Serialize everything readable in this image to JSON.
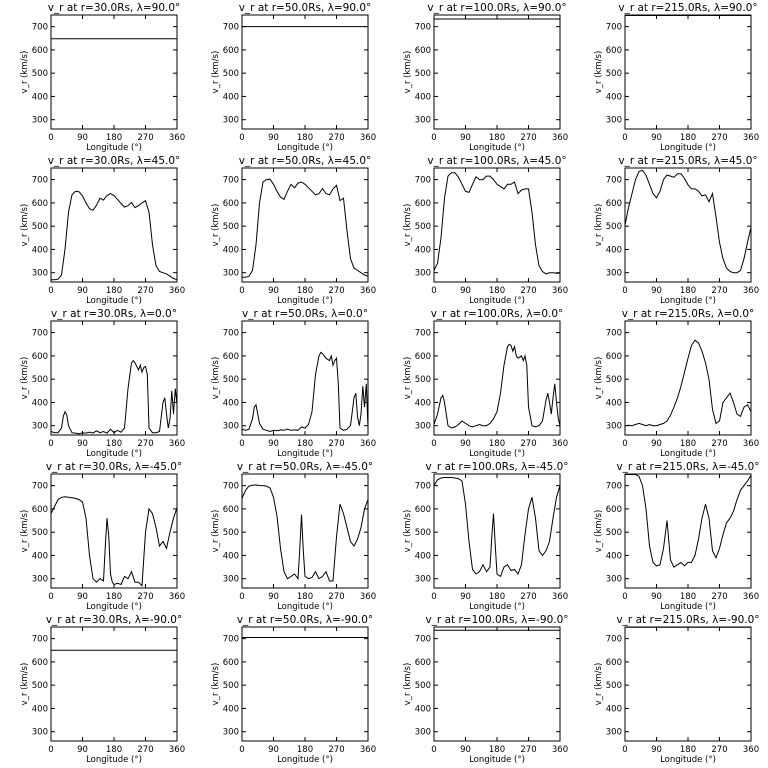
{
  "figure": {
    "ylabel": "v_r (km/s)",
    "xlabel": "Longitude (°)",
    "xticks": [
      0,
      90,
      180,
      270,
      360
    ],
    "yticks": [
      300,
      400,
      500,
      600,
      700
    ],
    "xlim": [
      0,
      360
    ],
    "ylim": [
      260,
      750
    ]
  },
  "chart_data": [
    {
      "type": "line",
      "title": "v_r at r=30.0Rs, λ=90.0°",
      "xlabel": "Longitude (°)",
      "ylabel": "v_r (km/s)",
      "xlim": [
        0,
        360
      ],
      "ylim": [
        260,
        750
      ],
      "x": [
        0,
        360
      ],
      "y": [
        648,
        648
      ]
    },
    {
      "type": "line",
      "title": "v_r at r=50.0Rs, λ=90.0°",
      "xlabel": "Longitude (°)",
      "ylabel": "v_r (km/s)",
      "xlim": [
        0,
        360
      ],
      "ylim": [
        260,
        750
      ],
      "x": [
        0,
        360
      ],
      "y": [
        700,
        700
      ]
    },
    {
      "type": "line",
      "title": "v_r at r=100.0Rs, λ=90.0°",
      "xlabel": "Longitude (°)",
      "ylabel": "v_r (km/s)",
      "xlim": [
        0,
        360
      ],
      "ylim": [
        260,
        750
      ],
      "x": [
        0,
        360
      ],
      "y": [
        733,
        733
      ]
    },
    {
      "type": "line",
      "title": "v_r at r=215.0Rs, λ=90.0°",
      "xlabel": "Longitude (°)",
      "ylabel": "v_r (km/s)",
      "xlim": [
        0,
        360
      ],
      "ylim": [
        260,
        750
      ],
      "x": [
        0,
        360
      ],
      "y": [
        748,
        748
      ]
    },
    {
      "type": "line",
      "title": "v_r at r=30.0Rs, λ=45.0°",
      "xlabel": "Longitude (°)",
      "ylabel": "v_r (km/s)",
      "xlim": [
        0,
        360
      ],
      "ylim": [
        260,
        750
      ],
      "x": [
        0,
        10,
        20,
        30,
        40,
        50,
        60,
        70,
        80,
        90,
        100,
        110,
        120,
        130,
        140,
        150,
        160,
        170,
        180,
        190,
        200,
        210,
        220,
        230,
        240,
        250,
        260,
        270,
        280,
        290,
        300,
        310,
        320,
        330,
        340,
        350,
        360
      ],
      "y": [
        270,
        270,
        272,
        290,
        400,
        560,
        635,
        650,
        648,
        630,
        600,
        575,
        568,
        590,
        620,
        612,
        632,
        640,
        632,
        615,
        598,
        582,
        588,
        602,
        580,
        588,
        600,
        610,
        560,
        420,
        330,
        305,
        300,
        295,
        285,
        275,
        270
      ]
    },
    {
      "type": "line",
      "title": "v_r at r=50.0Rs, λ=45.0°",
      "xlabel": "Longitude (°)",
      "ylabel": "v_r (km/s)",
      "xlim": [
        0,
        360
      ],
      "ylim": [
        260,
        750
      ],
      "x": [
        0,
        10,
        20,
        30,
        40,
        50,
        60,
        70,
        80,
        90,
        100,
        110,
        120,
        130,
        140,
        150,
        160,
        170,
        180,
        190,
        200,
        210,
        220,
        230,
        240,
        250,
        260,
        270,
        280,
        290,
        300,
        310,
        320,
        330,
        340,
        350,
        360
      ],
      "y": [
        280,
        280,
        285,
        310,
        420,
        600,
        690,
        700,
        702,
        680,
        650,
        625,
        615,
        650,
        680,
        665,
        685,
        690,
        680,
        665,
        650,
        635,
        640,
        662,
        640,
        635,
        660,
        675,
        610,
        620,
        480,
        360,
        320,
        310,
        300,
        290,
        285
      ]
    },
    {
      "type": "line",
      "title": "v_r at r=100.0Rs, λ=45.0°",
      "xlabel": "Longitude (°)",
      "ylabel": "v_r (km/s)",
      "xlim": [
        0,
        360
      ],
      "ylim": [
        260,
        750
      ],
      "x": [
        0,
        10,
        20,
        30,
        40,
        50,
        60,
        70,
        80,
        90,
        100,
        110,
        120,
        130,
        140,
        150,
        160,
        170,
        180,
        190,
        200,
        210,
        220,
        230,
        240,
        250,
        260,
        270,
        280,
        290,
        300,
        310,
        320,
        330,
        340,
        350,
        360
      ],
      "y": [
        310,
        340,
        450,
        620,
        715,
        730,
        730,
        710,
        680,
        650,
        645,
        680,
        712,
        700,
        700,
        715,
        715,
        700,
        680,
        670,
        660,
        680,
        680,
        690,
        640,
        655,
        660,
        660,
        560,
        420,
        330,
        305,
        295,
        300,
        300,
        298,
        298
      ]
    },
    {
      "type": "line",
      "title": "v_r at r=215.0Rs, λ=45.0°",
      "xlabel": "Longitude (°)",
      "ylabel": "v_r (km/s)",
      "xlim": [
        0,
        360
      ],
      "ylim": [
        260,
        750
      ],
      "x": [
        0,
        10,
        20,
        30,
        40,
        50,
        60,
        70,
        80,
        90,
        100,
        110,
        120,
        130,
        140,
        150,
        160,
        170,
        180,
        190,
        200,
        210,
        220,
        230,
        240,
        250,
        260,
        270,
        280,
        290,
        300,
        310,
        320,
        330,
        340,
        350,
        360
      ],
      "y": [
        505,
        580,
        640,
        700,
        735,
        740,
        718,
        680,
        640,
        622,
        650,
        700,
        720,
        715,
        710,
        725,
        725,
        705,
        678,
        660,
        660,
        650,
        630,
        635,
        605,
        640,
        540,
        430,
        360,
        320,
        305,
        300,
        300,
        310,
        360,
        430,
        495
      ]
    },
    {
      "type": "line",
      "title": "v_r at r=30.0Rs, λ=0.0°",
      "xlabel": "Longitude (°)",
      "ylabel": "v_r (km/s)",
      "xlim": [
        0,
        360
      ],
      "ylim": [
        260,
        750
      ],
      "x": [
        0,
        10,
        20,
        30,
        35,
        40,
        45,
        50,
        60,
        70,
        80,
        90,
        100,
        110,
        120,
        130,
        140,
        150,
        160,
        170,
        180,
        190,
        200,
        210,
        220,
        230,
        235,
        240,
        250,
        255,
        260,
        265,
        270,
        275,
        280,
        290,
        300,
        310,
        320,
        325,
        330,
        335,
        340,
        345,
        350,
        355,
        360
      ],
      "y": [
        275,
        270,
        270,
        290,
        340,
        360,
        345,
        300,
        270,
        268,
        265,
        270,
        268,
        272,
        268,
        278,
        270,
        275,
        268,
        285,
        270,
        280,
        272,
        290,
        460,
        570,
        580,
        570,
        540,
        560,
        530,
        550,
        555,
        520,
        290,
        270,
        270,
        275,
        400,
        420,
        350,
        290,
        330,
        450,
        350,
        460,
        390
      ]
    },
    {
      "type": "line",
      "title": "v_r at r=50.0Rs, λ=0.0°",
      "xlabel": "Longitude (°)",
      "ylabel": "v_r (km/s)",
      "xlim": [
        0,
        360
      ],
      "ylim": [
        260,
        750
      ],
      "x": [
        0,
        10,
        20,
        30,
        35,
        40,
        50,
        60,
        70,
        80,
        90,
        100,
        110,
        120,
        130,
        140,
        150,
        160,
        170,
        180,
        190,
        200,
        210,
        220,
        225,
        230,
        235,
        240,
        250,
        255,
        260,
        265,
        270,
        275,
        280,
        290,
        300,
        310,
        320,
        325,
        330,
        335,
        340,
        345,
        350,
        355,
        360
      ],
      "y": [
        285,
        280,
        285,
        330,
        380,
        390,
        310,
        285,
        280,
        275,
        280,
        278,
        282,
        280,
        285,
        280,
        282,
        280,
        295,
        290,
        305,
        360,
        520,
        600,
        615,
        610,
        600,
        590,
        580,
        600,
        560,
        580,
        590,
        480,
        290,
        280,
        285,
        300,
        420,
        440,
        340,
        300,
        350,
        470,
        380,
        480,
        290
      ]
    },
    {
      "type": "line",
      "title": "v_r at r=100.0Rs, λ=0.0°",
      "xlabel": "Longitude (°)",
      "ylabel": "v_r (km/s)",
      "xlim": [
        0,
        360
      ],
      "ylim": [
        260,
        750
      ],
      "x": [
        0,
        10,
        20,
        25,
        30,
        40,
        50,
        60,
        70,
        80,
        90,
        100,
        110,
        120,
        130,
        140,
        150,
        160,
        170,
        180,
        190,
        200,
        210,
        215,
        220,
        225,
        230,
        235,
        240,
        250,
        255,
        260,
        265,
        270,
        280,
        290,
        300,
        310,
        320,
        325,
        330,
        335,
        340,
        345,
        350,
        355,
        360
      ],
      "y": [
        305,
        350,
        420,
        430,
        400,
        300,
        290,
        295,
        305,
        320,
        310,
        300,
        295,
        300,
        305,
        300,
        300,
        310,
        330,
        360,
        440,
        560,
        640,
        650,
        645,
        620,
        640,
        600,
        590,
        600,
        580,
        600,
        560,
        380,
        300,
        295,
        300,
        320,
        410,
        440,
        400,
        350,
        420,
        480,
        400,
        330,
        300
      ]
    },
    {
      "type": "line",
      "title": "v_r at r=215.0Rs, λ=0.0°",
      "xlabel": "Longitude (°)",
      "ylabel": "v_r (km/s)",
      "xlim": [
        0,
        360
      ],
      "ylim": [
        260,
        750
      ],
      "x": [
        0,
        10,
        20,
        30,
        40,
        50,
        60,
        70,
        80,
        90,
        100,
        110,
        120,
        130,
        140,
        150,
        160,
        170,
        180,
        190,
        200,
        210,
        220,
        230,
        240,
        250,
        260,
        270,
        280,
        290,
        300,
        310,
        320,
        330,
        340,
        350,
        360
      ],
      "y": [
        300,
        302,
        300,
        305,
        310,
        305,
        300,
        305,
        300,
        300,
        305,
        310,
        320,
        345,
        380,
        420,
        470,
        530,
        590,
        645,
        668,
        655,
        620,
        570,
        500,
        370,
        310,
        320,
        400,
        420,
        440,
        400,
        350,
        340,
        380,
        390,
        360
      ]
    },
    {
      "type": "line",
      "title": "v_r at r=30.0Rs, λ=-45.0°",
      "xlabel": "Longitude (°)",
      "ylabel": "v_r (km/s)",
      "xlim": [
        0,
        360
      ],
      "ylim": [
        260,
        750
      ],
      "x": [
        0,
        10,
        20,
        30,
        40,
        50,
        60,
        70,
        80,
        90,
        100,
        110,
        120,
        130,
        140,
        150,
        155,
        160,
        165,
        170,
        175,
        180,
        190,
        200,
        210,
        220,
        230,
        240,
        250,
        260,
        270,
        280,
        290,
        300,
        310,
        320,
        330,
        340,
        350,
        360
      ],
      "y": [
        580,
        610,
        640,
        650,
        652,
        650,
        648,
        645,
        640,
        630,
        560,
        400,
        300,
        285,
        300,
        290,
        440,
        560,
        480,
        320,
        285,
        275,
        280,
        275,
        310,
        300,
        330,
        285,
        285,
        270,
        500,
        600,
        580,
        520,
        440,
        460,
        430,
        500,
        560,
        605
      ]
    },
    {
      "type": "line",
      "title": "v_r at r=50.0Rs, λ=-45.0°",
      "xlabel": "Longitude (°)",
      "ylabel": "v_r (km/s)",
      "xlim": [
        0,
        360
      ],
      "ylim": [
        260,
        750
      ],
      "x": [
        0,
        10,
        20,
        30,
        40,
        50,
        60,
        70,
        80,
        90,
        100,
        110,
        120,
        130,
        140,
        150,
        160,
        165,
        170,
        175,
        180,
        190,
        200,
        210,
        220,
        230,
        240,
        250,
        260,
        270,
        280,
        290,
        300,
        310,
        320,
        330,
        340,
        350,
        360
      ],
      "y": [
        645,
        680,
        698,
        702,
        703,
        700,
        700,
        698,
        690,
        650,
        570,
        430,
        330,
        300,
        310,
        320,
        300,
        430,
        575,
        420,
        310,
        300,
        305,
        330,
        300,
        310,
        330,
        290,
        290,
        480,
        620,
        580,
        520,
        460,
        440,
        470,
        520,
        600,
        640
      ]
    },
    {
      "type": "line",
      "title": "v_r at r=100.0Rs, λ=-45.0°",
      "xlabel": "Longitude (°)",
      "ylabel": "v_r (km/s)",
      "xlim": [
        0,
        360
      ],
      "ylim": [
        260,
        750
      ],
      "x": [
        0,
        10,
        20,
        30,
        40,
        50,
        60,
        70,
        80,
        90,
        100,
        110,
        120,
        130,
        140,
        150,
        160,
        165,
        170,
        175,
        180,
        190,
        200,
        210,
        220,
        230,
        240,
        250,
        260,
        270,
        280,
        290,
        300,
        310,
        320,
        330,
        340,
        350,
        360
      ],
      "y": [
        700,
        725,
        733,
        735,
        735,
        735,
        733,
        730,
        720,
        620,
        460,
        340,
        320,
        330,
        360,
        330,
        350,
        480,
        580,
        440,
        320,
        310,
        350,
        360,
        335,
        340,
        320,
        360,
        490,
        600,
        650,
        560,
        420,
        400,
        420,
        460,
        560,
        650,
        700
      ]
    },
    {
      "type": "line",
      "title": "v_r at r=215.0Rs, λ=-45.0°",
      "xlabel": "Longitude (°)",
      "ylabel": "v_r (km/s)",
      "xlim": [
        0,
        360
      ],
      "ylim": [
        260,
        750
      ],
      "x": [
        0,
        10,
        20,
        30,
        40,
        50,
        60,
        70,
        80,
        90,
        100,
        110,
        120,
        130,
        140,
        150,
        160,
        170,
        180,
        190,
        200,
        210,
        220,
        230,
        240,
        250,
        260,
        270,
        280,
        290,
        300,
        310,
        320,
        330,
        340,
        350,
        360
      ],
      "y": [
        748,
        748,
        748,
        748,
        740,
        700,
        600,
        440,
        370,
        355,
        360,
        430,
        550,
        380,
        350,
        360,
        370,
        355,
        370,
        370,
        400,
        470,
        560,
        620,
        560,
        420,
        390,
        430,
        490,
        540,
        560,
        590,
        640,
        680,
        700,
        720,
        745
      ]
    },
    {
      "type": "line",
      "title": "v_r at r=30.0Rs, λ=-90.0°",
      "xlabel": "Longitude (°)",
      "ylabel": "v_r (km/s)",
      "xlim": [
        0,
        360
      ],
      "ylim": [
        260,
        750
      ],
      "x": [
        0,
        360
      ],
      "y": [
        650,
        650
      ]
    },
    {
      "type": "line",
      "title": "v_r at r=50.0Rs, λ=-90.0°",
      "xlabel": "Longitude (°)",
      "ylabel": "v_r (km/s)",
      "xlim": [
        0,
        360
      ],
      "ylim": [
        260,
        750
      ],
      "x": [
        0,
        360
      ],
      "y": [
        705,
        705
      ]
    },
    {
      "type": "line",
      "title": "v_r at r=100.0Rs, λ=-90.0°",
      "xlabel": "Longitude (°)",
      "ylabel": "v_r (km/s)",
      "xlim": [
        0,
        360
      ],
      "ylim": [
        260,
        750
      ],
      "x": [
        0,
        360
      ],
      "y": [
        736,
        736
      ]
    },
    {
      "type": "line",
      "title": "v_r at r=215.0Rs, λ=-90.0°",
      "xlabel": "Longitude (°)",
      "ylabel": "v_r (km/s)",
      "xlim": [
        0,
        360
      ],
      "ylim": [
        260,
        750
      ],
      "x": [
        0,
        360
      ],
      "y": [
        749,
        749
      ]
    }
  ]
}
